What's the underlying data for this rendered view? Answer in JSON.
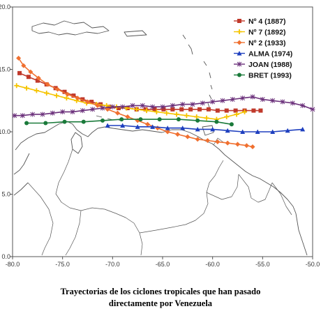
{
  "chart_data": {
    "type": "line",
    "title": "",
    "xlabel": "",
    "ylabel": "",
    "xlim": [
      -80.0,
      -50.0
    ],
    "ylim": [
      0.0,
      20.0
    ],
    "x_ticks": [
      "-80.0",
      "-75.0",
      "-70.0",
      "-65.0",
      "-60.0",
      "-55.0",
      "-50.0"
    ],
    "y_ticks": [
      "0.0",
      "5.0",
      "10.0",
      "15.0",
      "20.0"
    ],
    "grid": false,
    "legend_position": "top-right",
    "background": "map of the Caribbean and northern South America",
    "series": [
      {
        "name": "Nº 4 (1887)",
        "color": "#c0392b",
        "marker": "square",
        "x": [
          -79.3,
          -78.4,
          -77.5,
          -76.6,
          -75.7,
          -74.8,
          -73.9,
          -73.0,
          -72.1,
          -71.2,
          -70.3,
          -69.4,
          -68.5,
          -67.6,
          -66.7,
          -65.8,
          -64.9,
          -64.0,
          -63.1,
          -62.2,
          -61.3,
          -60.4,
          -59.5,
          -58.6,
          -57.7,
          -56.8,
          -55.9,
          -55.2
        ],
        "y": [
          14.7,
          14.4,
          14.1,
          13.8,
          13.5,
          13.2,
          12.9,
          12.6,
          12.4,
          12.2,
          12.0,
          11.9,
          11.9,
          11.8,
          11.8,
          11.8,
          11.8,
          11.8,
          11.8,
          11.8,
          11.8,
          11.8,
          11.7,
          11.7,
          11.7,
          11.7,
          11.7,
          11.7
        ]
      },
      {
        "name": "Nº 7 (1892)",
        "color": "#f5c400",
        "marker": "plus",
        "x": [
          -79.6,
          -78.6,
          -77.6,
          -76.6,
          -75.6,
          -74.6,
          -73.6,
          -72.6,
          -71.6,
          -70.6,
          -69.6,
          -68.6,
          -67.6,
          -66.6,
          -65.6,
          -64.6,
          -63.6,
          -62.6,
          -61.6,
          -60.6,
          -59.6,
          -58.6,
          -57.6,
          -56.8
        ],
        "y": [
          13.7,
          13.5,
          13.3,
          13.1,
          12.9,
          12.7,
          12.5,
          12.3,
          12.2,
          12.1,
          12.0,
          11.9,
          11.8,
          11.7,
          11.6,
          11.5,
          11.4,
          11.3,
          11.2,
          11.1,
          11.0,
          11.2,
          11.4,
          11.6
        ]
      },
      {
        "name": "Nº 2 (1933)",
        "color": "#f07030",
        "marker": "diamond",
        "x": [
          -79.4,
          -78.9,
          -78.2,
          -77.4,
          -76.5,
          -75.5,
          -74.5,
          -73.5,
          -72.5,
          -71.5,
          -70.5,
          -69.5,
          -68.5,
          -67.5,
          -66.5,
          -65.5,
          -64.5,
          -63.5,
          -62.5,
          -61.5,
          -60.5,
          -59.5,
          -58.5,
          -57.5,
          -56.6,
          -56.0
        ],
        "y": [
          15.9,
          15.3,
          14.8,
          14.3,
          13.8,
          13.4,
          13.0,
          12.7,
          12.4,
          12.1,
          11.8,
          11.5,
          11.2,
          10.9,
          10.6,
          10.3,
          10.0,
          9.8,
          9.6,
          9.4,
          9.3,
          9.2,
          9.1,
          9.0,
          8.9,
          8.8
        ]
      },
      {
        "name": "ALMA (1974)",
        "color": "#1e3fbf",
        "marker": "triangle",
        "x": [
          -70.5,
          -69.0,
          -67.5,
          -66.0,
          -64.5,
          -63.0,
          -61.5,
          -60.0,
          -58.5,
          -57.0,
          -55.5,
          -54.0,
          -52.5,
          -51.0
        ],
        "y": [
          10.5,
          10.5,
          10.4,
          10.4,
          10.3,
          10.3,
          10.2,
          10.2,
          10.1,
          10.0,
          10.0,
          10.0,
          10.1,
          10.2
        ]
      },
      {
        "name": "JOAN (1988)",
        "color": "#6a2f7a",
        "marker": "star",
        "x": [
          -79.8,
          -79.0,
          -78.0,
          -77.0,
          -76.0,
          -75.0,
          -74.0,
          -73.0,
          -72.0,
          -71.0,
          -70.0,
          -69.0,
          -68.0,
          -67.0,
          -66.0,
          -65.0,
          -64.0,
          -63.0,
          -62.0,
          -61.0,
          -60.0,
          -59.0,
          -58.0,
          -57.0,
          -56.0,
          -55.0,
          -54.0,
          -53.0,
          -52.0,
          -51.0,
          -50.0
        ],
        "y": [
          11.3,
          11.3,
          11.4,
          11.4,
          11.5,
          11.6,
          11.6,
          11.7,
          11.8,
          11.9,
          12.0,
          12.0,
          12.1,
          12.1,
          12.0,
          12.0,
          12.1,
          12.2,
          12.2,
          12.3,
          12.4,
          12.5,
          12.6,
          12.7,
          12.8,
          12.6,
          12.5,
          12.4,
          12.3,
          12.1,
          11.8
        ]
      },
      {
        "name": "BRET (1993)",
        "color": "#1a7a3a",
        "marker": "circle",
        "x": [
          -78.6,
          -76.7,
          -74.8,
          -72.9,
          -71.0,
          -69.1,
          -67.2,
          -65.3,
          -63.4,
          -61.5,
          -59.6,
          -58.1
        ],
        "y": [
          10.7,
          10.7,
          10.8,
          10.8,
          10.9,
          11.0,
          11.0,
          11.0,
          11.0,
          10.9,
          10.8,
          10.6
        ]
      }
    ]
  },
  "caption": {
    "line1": "Trayectorias de los  ciclones tropicales que han pasado",
    "line2": "directamente por Venezuela"
  }
}
